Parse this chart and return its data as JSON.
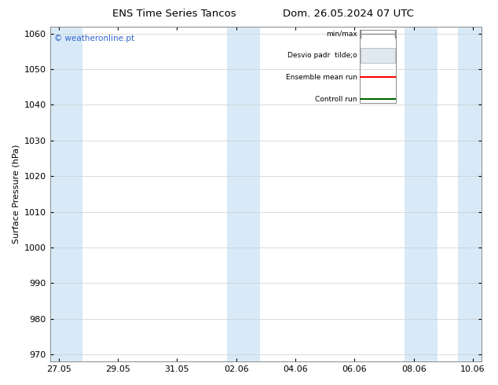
{
  "title_left": "ENS Time Series Tancos",
  "title_right": "Dom. 26.05.2024 07 UTC",
  "ylabel": "Surface Pressure (hPa)",
  "ylim": [
    968,
    1062
  ],
  "yticks": [
    970,
    980,
    990,
    1000,
    1010,
    1020,
    1030,
    1040,
    1050,
    1060
  ],
  "x_dates": [
    "27.05",
    "29.05",
    "31.05",
    "02.06",
    "04.06",
    "06.06",
    "08.06",
    "10.06"
  ],
  "x_positions": [
    0,
    2,
    4,
    6,
    8,
    10,
    12,
    14
  ],
  "shaded_bands": [
    {
      "x_start": -0.3,
      "x_end": 0.8
    },
    {
      "x_start": 5.7,
      "x_end": 6.8
    },
    {
      "x_start": 11.7,
      "x_end": 12.8
    },
    {
      "x_start": 13.5,
      "x_end": 14.3
    }
  ],
  "watermark_text": "© weatheronline.pt",
  "watermark_color": "#3366cc",
  "bg_color": "#ffffff",
  "plot_bg_color": "#ffffff",
  "band_color": "#d8eaf8",
  "grid_color": "#cccccc",
  "xlim": [
    -0.3,
    14.3
  ]
}
